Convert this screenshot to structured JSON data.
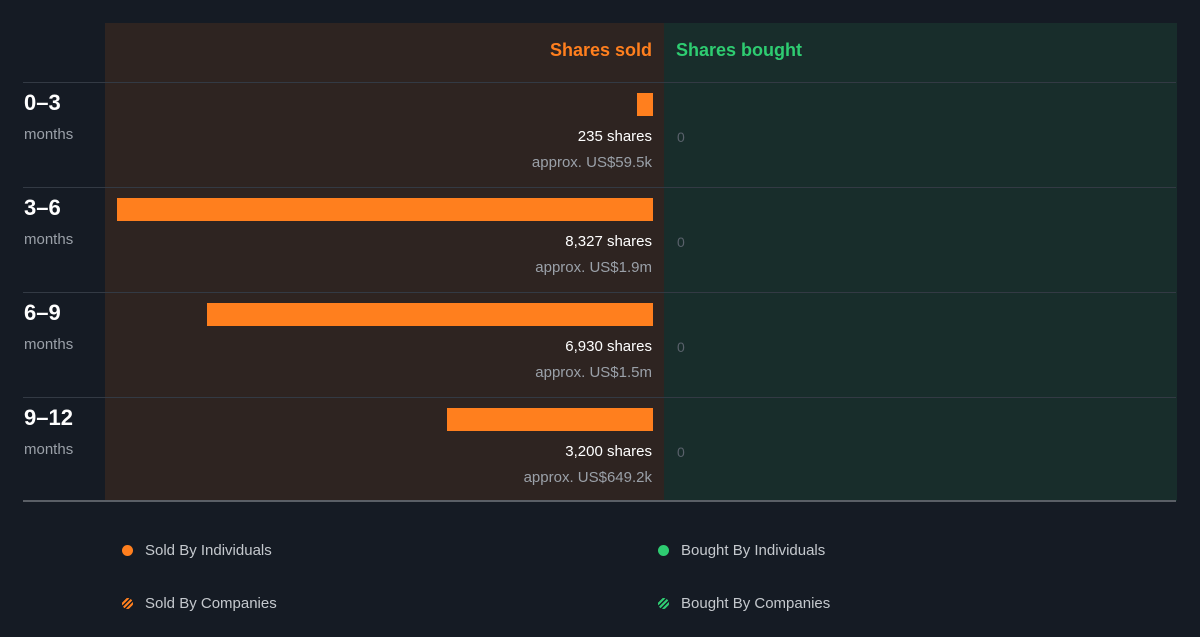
{
  "chart_data": {
    "type": "bar",
    "orientation": "horizontal-diverging",
    "columns": {
      "sold": "Shares sold",
      "bought": "Shares bought"
    },
    "periods": [
      {
        "range": "0–3",
        "unit": "months",
        "sold_shares": 235,
        "sold_shares_label": "235 shares",
        "sold_value_label": "approx. US$59.5k",
        "bought_label": "0"
      },
      {
        "range": "3–6",
        "unit": "months",
        "sold_shares": 8327,
        "sold_shares_label": "8,327 shares",
        "sold_value_label": "approx. US$1.9m",
        "bought_label": "0"
      },
      {
        "range": "6–9",
        "unit": "months",
        "sold_shares": 6930,
        "sold_shares_label": "6,930 shares",
        "sold_value_label": "approx. US$1.5m",
        "bought_label": "0"
      },
      {
        "range": "9–12",
        "unit": "months",
        "sold_shares": 3200,
        "sold_shares_label": "3,200 shares",
        "sold_value_label": "approx. US$649.2k",
        "bought_label": "0"
      }
    ],
    "max_sold": 8327,
    "colors": {
      "sold": "#ff7f1e",
      "bought": "#2ecc71"
    },
    "legend": [
      {
        "label": "Sold By Individuals",
        "marker": "dot",
        "color": "#ff7f1e"
      },
      {
        "label": "Bought By Individuals",
        "marker": "dot",
        "color": "#2ecc71"
      },
      {
        "label": "Sold By Companies",
        "marker": "hatch",
        "color": "#ff7f1e"
      },
      {
        "label": "Bought By Companies",
        "marker": "hatch",
        "color": "#2ecc71"
      }
    ]
  }
}
